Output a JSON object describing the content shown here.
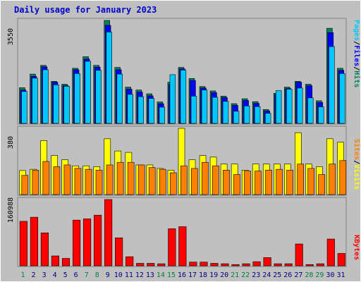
{
  "title": "Daily usage for January 2023",
  "colors": {
    "hits": "#00805c",
    "files": "#0000ff",
    "pages": "#00c8ff",
    "visits": "#ffff00",
    "sites": "#ff8000",
    "kbytes": "#ff0000",
    "weekday_label": "#000080",
    "weekend_label": "#008040",
    "panel_bg": "#c0c0c0"
  },
  "chart_data": {
    "type": "bar",
    "categories": [
      "1",
      "2",
      "3",
      "4",
      "5",
      "6",
      "7",
      "8",
      "9",
      "10",
      "11",
      "12",
      "13",
      "14",
      "15",
      "16",
      "17",
      "18",
      "19",
      "20",
      "21",
      "22",
      "23",
      "24",
      "25",
      "26",
      "27",
      "28",
      "29",
      "30",
      "31"
    ],
    "weekend_days": [
      1,
      7,
      8,
      14,
      15,
      21,
      22,
      28,
      29
    ],
    "panels": [
      {
        "id": "hits-files-pages",
        "max_label": "3550",
        "ymax": 3550,
        "legend": [
          "Pages",
          "/",
          "Files",
          "/",
          "Hits"
        ],
        "series": [
          {
            "name": "Hits",
            "values": [
              1230,
              1700,
              2000,
              1450,
              1350,
              1900,
              2300,
              2000,
              3550,
              1930,
              1250,
              1150,
              1020,
              740,
              1420,
              1930,
              1550,
              1270,
              1120,
              940,
              680,
              850,
              750,
              480,
              1040,
              1250,
              1450,
              1350,
              780,
              3280,
              1900
            ]
          },
          {
            "name": "Files",
            "values": [
              1150,
              1620,
              1950,
              1420,
              1300,
              1850,
              2220,
              1940,
              3380,
              1850,
              1180,
              1080,
              950,
              680,
              1340,
              1880,
              1480,
              1220,
              1060,
              890,
              620,
              790,
              690,
              430,
              990,
              1200,
              1420,
              1300,
              720,
              3130,
              1830
            ]
          },
          {
            "name": "Pages",
            "values": [
              1100,
              1560,
              1850,
              1330,
              1280,
              1720,
              2140,
              1830,
              3150,
              1700,
              1000,
              920,
              860,
              560,
              1680,
              1840,
              940,
              1150,
              900,
              760,
              420,
              600,
              580,
              350,
              1130,
              1180,
              1220,
              880,
              570,
              2650,
              1720
            ]
          }
        ]
      },
      {
        "id": "visits-sites",
        "max_label": "380",
        "ymax": 380,
        "legend": [
          "Sites",
          "/",
          "Visits"
        ],
        "series": [
          {
            "name": "Visits",
            "values": [
              138,
              145,
              310,
              224,
              200,
              165,
              165,
              160,
              320,
              250,
              242,
              170,
              170,
              150,
              140,
              380,
              200,
              224,
              215,
              175,
              175,
              140,
              175,
              175,
              175,
              175,
              355,
              175,
              160,
              320,
              300
            ]
          },
          {
            "name": "Sites",
            "values": [
              110,
              140,
              190,
              160,
              170,
              150,
              145,
              140,
              170,
              185,
              185,
              170,
              155,
              145,
              125,
              165,
              150,
              185,
              165,
              140,
              115,
              135,
              135,
              140,
              145,
              140,
              175,
              150,
              115,
              175,
              195
            ]
          }
        ]
      },
      {
        "id": "kbytes",
        "max_label": "160988",
        "ymax": 160988,
        "legend": [
          "KBytes"
        ],
        "series": [
          {
            "name": "KBytes",
            "values": [
              108000,
              118000,
              80000,
              24000,
              18000,
              111000,
              114000,
              123000,
              160988,
              68000,
              22000,
              6000,
              6000,
              5000,
              90000,
              95000,
              9000,
              9000,
              6000,
              5000,
              3000,
              5000,
              10000,
              20000,
              5000,
              5000,
              53000,
              3000,
              5000,
              65000,
              30000
            ]
          }
        ]
      }
    ]
  }
}
